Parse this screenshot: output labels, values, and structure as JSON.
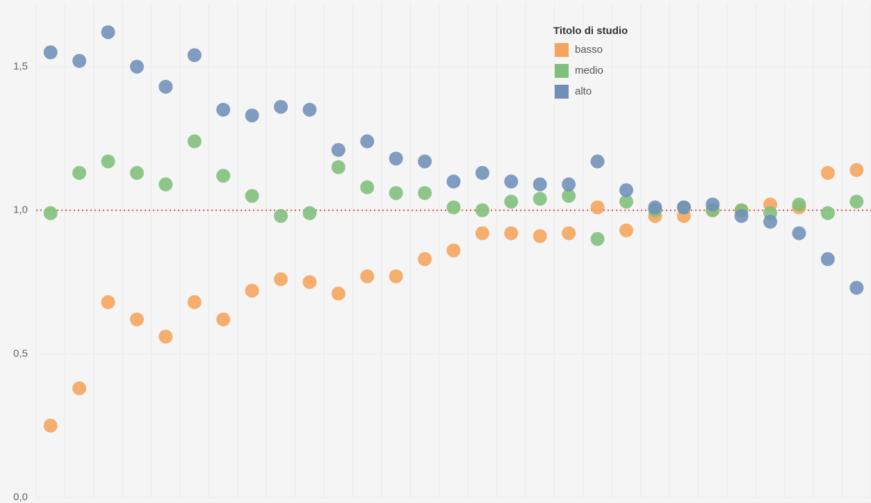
{
  "chart_data": {
    "type": "scatter",
    "categories": [
      null,
      null,
      null,
      null,
      null,
      null,
      null,
      null,
      null,
      null,
      null,
      null,
      null,
      null,
      null,
      null,
      null,
      null,
      null,
      null,
      null,
      null,
      null,
      null,
      null,
      null,
      null,
      null,
      null
    ],
    "legend_title": "Titolo di studio",
    "legend": "top-right",
    "grid": true,
    "reference_line": 1,
    "reference_color": "#d9534f",
    "ylim": [
      0,
      1.72
    ],
    "yticks": [
      {
        "value": 0,
        "label": "0,0"
      },
      {
        "value": 0.5,
        "label": "0,5"
      },
      {
        "value": 1,
        "label": "1,0"
      },
      {
        "value": 1.5,
        "label": "1,5"
      }
    ],
    "series": [
      {
        "name": "basso",
        "color": "#f5a45b",
        "values": [
          0.25,
          0.38,
          0.68,
          0.62,
          0.56,
          0.68,
          0.62,
          0.72,
          0.76,
          0.75,
          0.71,
          0.77,
          0.77,
          0.83,
          0.86,
          0.92,
          0.92,
          0.91,
          0.92,
          1.01,
          0.93,
          0.98,
          0.98,
          1.0,
          1.0,
          1.02,
          1.01,
          1.13,
          1.14
        ]
      },
      {
        "name": "medio",
        "color": "#7fbf7b",
        "values": [
          0.99,
          1.13,
          1.17,
          1.13,
          1.09,
          1.24,
          1.12,
          1.05,
          0.98,
          0.99,
          1.15,
          1.08,
          1.06,
          1.06,
          1.01,
          1.0,
          1.03,
          1.04,
          1.05,
          0.9,
          1.03,
          1.0,
          1.01,
          1.0,
          1.0,
          0.99,
          1.02,
          0.99,
          1.03
        ]
      },
      {
        "name": "alto",
        "color": "#6f8fb8",
        "values": [
          1.55,
          1.52,
          1.62,
          1.5,
          1.43,
          1.54,
          1.35,
          1.33,
          1.36,
          1.35,
          1.21,
          1.24,
          1.18,
          1.17,
          1.1,
          1.13,
          1.1,
          1.09,
          1.09,
          1.17,
          1.07,
          1.01,
          1.01,
          1.02,
          0.98,
          0.96,
          0.92,
          0.83,
          0.73
        ]
      }
    ]
  }
}
